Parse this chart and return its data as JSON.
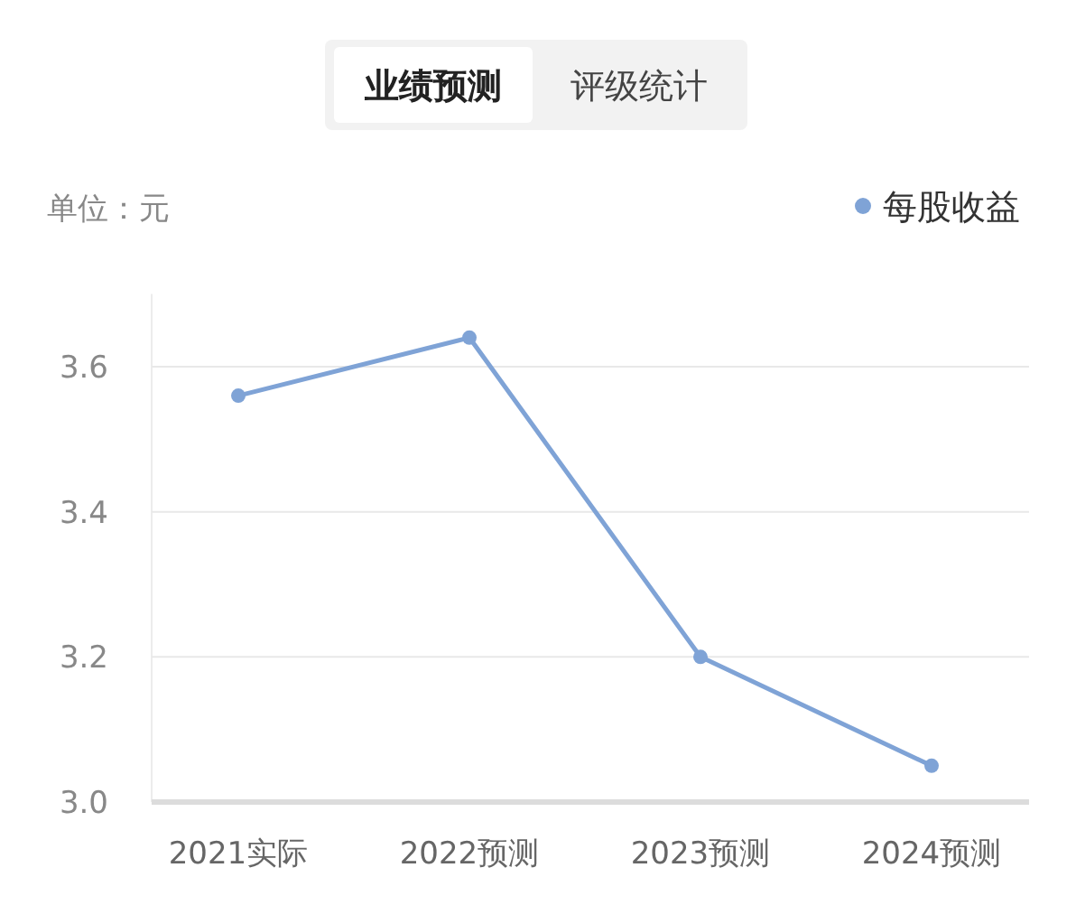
{
  "chart_data": {
    "type": "line",
    "ylabel": "单位：元",
    "annotations": [
      "业绩预测",
      "评级统计"
    ],
    "categories": [
      "2021实际",
      "2022预测",
      "2023预测",
      "2024预测"
    ],
    "series": [
      {
        "name": "每股收益",
        "color": "#7fa3d6",
        "values": [
          3.56,
          3.64,
          3.2,
          3.05
        ]
      }
    ],
    "ylim": [
      3.0,
      3.7
    ],
    "yticks": [
      {
        "value": 3.0,
        "label": "3.0"
      },
      {
        "value": 3.2,
        "label": "3.2"
      },
      {
        "value": 3.4,
        "label": "3.4"
      },
      {
        "value": 3.6,
        "label": "3.6"
      }
    ],
    "grid": "y",
    "legend": "top right",
    "marker": "circle",
    "line_style": "solid"
  }
}
